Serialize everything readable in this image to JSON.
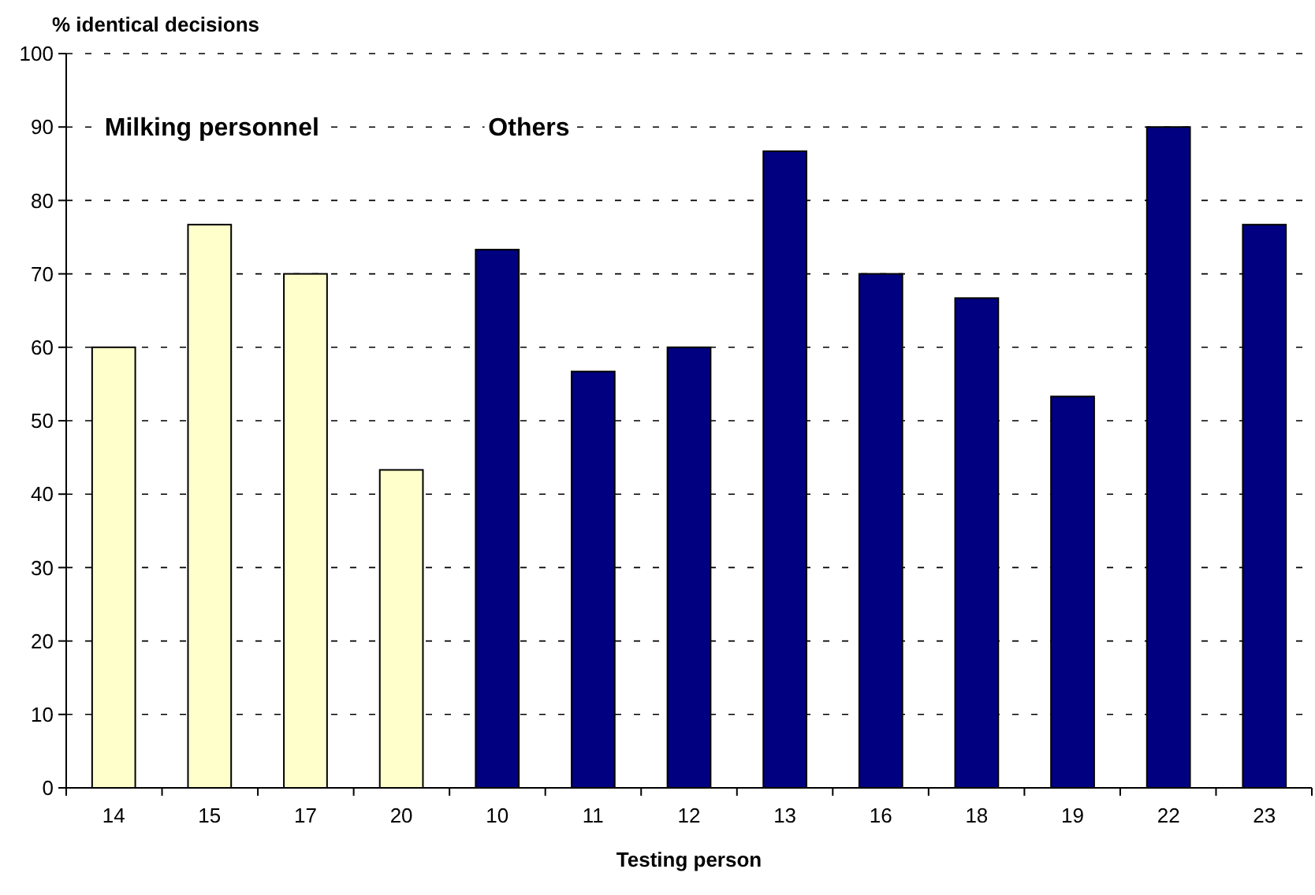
{
  "chart_data": {
    "type": "bar",
    "xlabel": "Testing person",
    "ylabel": "% identical decisions",
    "categories": [
      "14",
      "15",
      "17",
      "20",
      "10",
      "11",
      "12",
      "13",
      "16",
      "18",
      "19",
      "22",
      "23"
    ],
    "values": [
      60,
      76.7,
      70,
      43.3,
      73.3,
      56.7,
      60,
      86.7,
      70,
      66.7,
      53.3,
      90,
      76.7
    ],
    "colors": [
      "#ffffcc",
      "#ffffcc",
      "#ffffcc",
      "#ffffcc",
      "#000080",
      "#000080",
      "#000080",
      "#000080",
      "#000080",
      "#000080",
      "#000080",
      "#000080",
      "#000080"
    ],
    "ylim": [
      0,
      100
    ],
    "yticks": [
      0,
      10,
      20,
      30,
      40,
      50,
      60,
      70,
      80,
      90,
      100
    ],
    "grid": "y",
    "annotations": [
      "Milking personnel",
      "Others"
    ]
  }
}
